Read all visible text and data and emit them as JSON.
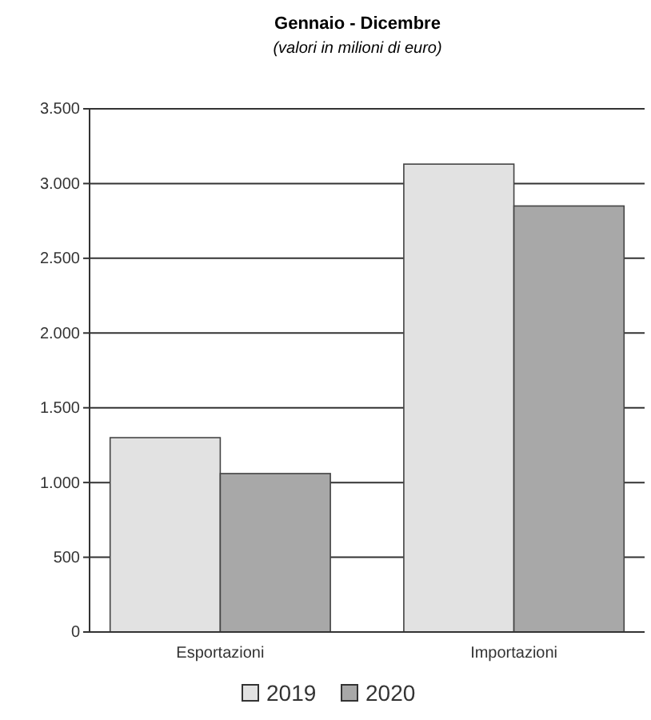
{
  "chart_data": {
    "type": "bar",
    "title": "Gennaio - Dicembre",
    "subtitle": "(valori in milioni di euro)",
    "categories": [
      "Esportazioni",
      "Importazioni"
    ],
    "series": [
      {
        "name": "2019",
        "color": "#e2e2e2",
        "values": [
          1300,
          3130
        ]
      },
      {
        "name": "2020",
        "color": "#a8a8a8",
        "values": [
          1060,
          2850
        ]
      }
    ],
    "ylim": [
      0,
      3500
    ],
    "yticks": [
      {
        "value": 0,
        "label": "0"
      },
      {
        "value": 500,
        "label": "500"
      },
      {
        "value": 1000,
        "label": "1.000"
      },
      {
        "value": 1500,
        "label": "1.500"
      },
      {
        "value": 2000,
        "label": "2.000"
      },
      {
        "value": 2500,
        "label": "2.500"
      },
      {
        "value": 3000,
        "label": "3.000"
      },
      {
        "value": 3500,
        "label": "3.500"
      }
    ],
    "grid": "y",
    "legend": "bottom"
  }
}
